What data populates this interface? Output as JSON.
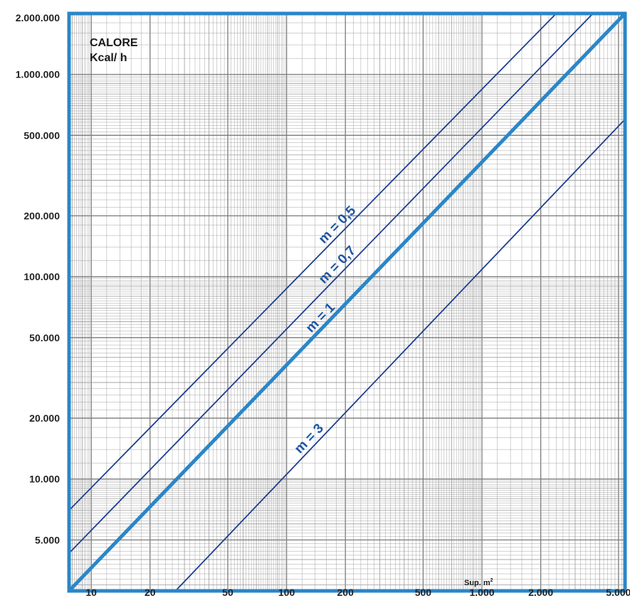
{
  "chart_data": {
    "type": "line",
    "title": "",
    "ylabel_lines": [
      "CALORE",
      "Kcal/ h"
    ],
    "xlabel": "Sup. m",
    "xlabel_sup": "2",
    "x_scale": "log",
    "y_scale": "log",
    "xlim": [
      7.7,
      5400
    ],
    "ylim": [
      2800,
      2000000
    ],
    "grid": true,
    "x_ticks": [
      {
        "value": 10,
        "label": "10"
      },
      {
        "value": 20,
        "label": "20"
      },
      {
        "value": 50,
        "label": "50"
      },
      {
        "value": 100,
        "label": "100"
      },
      {
        "value": 200,
        "label": "200"
      },
      {
        "value": 500,
        "label": "500"
      },
      {
        "value": 1000,
        "label": "1.000"
      },
      {
        "value": 2000,
        "label": "2.000"
      },
      {
        "value": 5000,
        "label": "5.000"
      }
    ],
    "y_ticks": [
      {
        "value": 5000,
        "label": "5.000"
      },
      {
        "value": 10000,
        "label": "10.000"
      },
      {
        "value": 20000,
        "label": "20.000"
      },
      {
        "value": 50000,
        "label": "50.000"
      },
      {
        "value": 100000,
        "label": "100.000"
      },
      {
        "value": 200000,
        "label": "200.000"
      },
      {
        "value": 500000,
        "label": "500.000"
      },
      {
        "value": 1000000,
        "label": "1.000.000"
      },
      {
        "value": 2000000,
        "label": "2.000.000"
      }
    ],
    "series": [
      {
        "name": "m = 0,5",
        "label_at": 195,
        "x": [
          7.7,
          2400
        ],
        "y": [
          7000,
          2000000
        ],
        "color": "#1d3f8f",
        "bold": false
      },
      {
        "name": "m = 0,7",
        "label_at": 195,
        "x": [
          7.7,
          3700
        ],
        "y": [
          4300,
          2000000
        ],
        "color": "#1d3f8f",
        "bold": false
      },
      {
        "name": "m = 1",
        "label_at": 160,
        "x": [
          7.7,
          5400
        ],
        "y": [
          2800,
          2000000
        ],
        "color": "#2a86c8",
        "bold": true
      },
      {
        "name": "m = 3",
        "label_at": 140,
        "x": [
          27,
          5400
        ],
        "y": [
          2800,
          600000
        ],
        "color": "#1d3f8f",
        "bold": false
      }
    ],
    "colors": {
      "frame": "#2a86c8",
      "grid": "#9a9a9a",
      "label": "#1d55a3"
    }
  }
}
